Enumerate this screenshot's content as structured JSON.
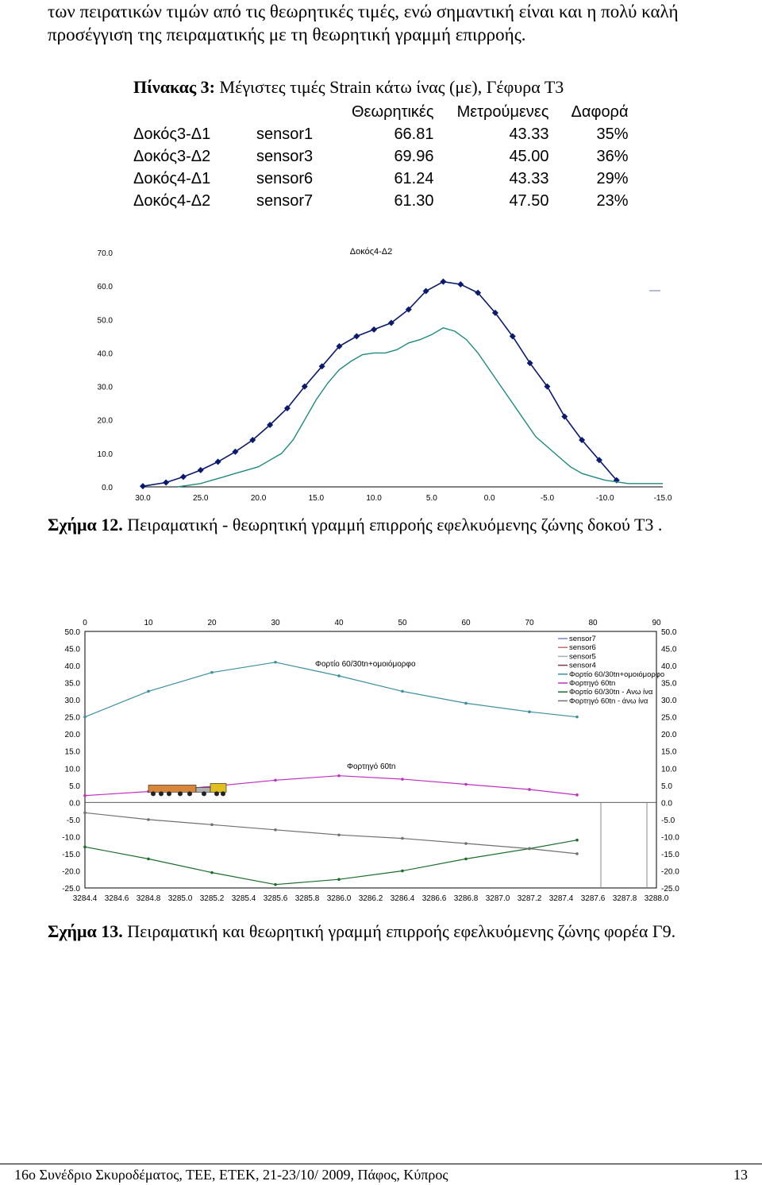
{
  "intro_text": "των πειρατικών τιμών από τις θεωρητικές τιμές, ενώ σημαντική είναι και η πολύ καλή προσέγγιση της πειραματικής με τη θεωρητική γραμμή επιρροής.",
  "table": {
    "caption_label": "Πίνακας 3:",
    "caption_text": "Μέγιστες τιμές Strain κάτω ίνας (με), Γέφυρα Τ3",
    "headers": [
      "Θεωρητικές",
      "Μετρούμενες",
      "Δαφορά"
    ],
    "rows": [
      {
        "beam": "Δοκός3-Δ1",
        "sensor": "sensor1",
        "theoretical": "66.81",
        "measured": "43.33",
        "diff": "35%"
      },
      {
        "beam": "Δοκός3-Δ2",
        "sensor": "sensor3",
        "theoretical": "69.96",
        "measured": "45.00",
        "diff": "36%"
      },
      {
        "beam": "Δοκός4-Δ1",
        "sensor": "sensor6",
        "theoretical": "61.24",
        "measured": "43.33",
        "diff": "29%"
      },
      {
        "beam": "Δοκός4-Δ2",
        "sensor": "sensor7",
        "theoretical": "61.30",
        "measured": "47.50",
        "diff": "23%"
      }
    ]
  },
  "figure12": {
    "caption_label": "Σχήμα 12.",
    "caption_text": "Πειραματική - θεωρητική γραμμή επιρροής εφελκυόμενης ζώνης δοκού Τ3 ."
  },
  "figure13": {
    "caption_label": "Σχήμα 13.",
    "caption_text": "Πειραματική και θεωρητική γραμμή επιρροής εφελκυόμενης ζώνης φορέα Γ9."
  },
  "footer": {
    "left": "16ο Συνέδριο Σκυροδέματος, ΤΕΕ, ΕΤΕΚ, 21-23/10/ 2009, Πάφος, Κύπρος",
    "page": "13"
  },
  "chart_data": [
    {
      "type": "line",
      "title": "Δοκός4-Δ2",
      "xlabel": "",
      "ylabel": "",
      "x_reversed": true,
      "xlim": [
        30,
        -15
      ],
      "ylim": [
        0,
        70
      ],
      "x_ticks": [
        "30.0",
        "25.0",
        "20.0",
        "15.0",
        "10.0",
        "5.0",
        "0.0",
        "-5.0",
        "-10.0",
        "-15.0"
      ],
      "y_ticks": [
        "70.0",
        "60.0",
        "50.0",
        "40.0",
        "30.0",
        "20.0",
        "10.0",
        "0.0"
      ],
      "series": [
        {
          "color": "#0a1a6e",
          "marker": "diamond",
          "x": [
            30,
            28,
            26.5,
            25,
            23.5,
            22,
            20.5,
            19,
            17.5,
            16,
            14.5,
            13,
            11.5,
            10,
            8.5,
            7,
            5.5,
            4,
            2.5,
            1,
            -0.5,
            -2,
            -3.5,
            -5,
            -6.5,
            -8,
            -9.5,
            -11
          ],
          "y": [
            0.2,
            1.3,
            3,
            5,
            7.5,
            10.5,
            14,
            18.5,
            23.5,
            30,
            36,
            42,
            45,
            47,
            49,
            53,
            58.5,
            61.3,
            60.5,
            58,
            52,
            45,
            37,
            30,
            21,
            14,
            8,
            2
          ]
        },
        {
          "color": "#1e8a80",
          "marker": "none",
          "x": [
            27,
            26,
            25,
            24,
            23,
            22,
            21,
            20,
            19,
            18,
            17,
            16,
            15,
            14,
            13,
            12,
            11,
            10,
            9,
            8,
            7,
            6,
            5,
            4,
            3,
            2,
            1,
            0,
            -1,
            -2,
            -3,
            -4,
            -5,
            -6,
            -7,
            -8,
            -9,
            -10,
            -11,
            -12,
            -13,
            -14,
            -15
          ],
          "y": [
            0,
            0.5,
            1,
            2,
            3,
            4,
            5,
            6,
            8,
            10,
            14,
            20,
            26,
            31,
            35,
            37.5,
            39.5,
            40,
            40,
            41,
            43,
            44,
            45.5,
            47.5,
            46.5,
            44,
            40,
            35,
            30,
            25,
            20,
            15,
            12,
            9,
            6,
            4,
            3,
            2,
            1.5,
            1,
            1,
            1,
            1
          ]
        }
      ]
    },
    {
      "type": "line",
      "title": "",
      "xlabel": "",
      "ylabel": "",
      "top_x_ticks": [
        "0",
        "10",
        "20",
        "30",
        "40",
        "50",
        "60",
        "70",
        "80",
        "90"
      ],
      "bottom_x_ticks": [
        "3284.4",
        "3284.6",
        "3284.8",
        "3285.0",
        "3285.2",
        "3285.4",
        "3285.6",
        "3285.8",
        "3286.0",
        "3286.2",
        "3286.4",
        "3286.6",
        "3286.8",
        "3287.0",
        "3287.2",
        "3287.4",
        "3287.6",
        "3287.8",
        "3288.0"
      ],
      "xlim": [
        3284.4,
        3288.0
      ],
      "ylim": [
        -25,
        50
      ],
      "y_ticks": [
        "50.0",
        "45.0",
        "40.0",
        "35.0",
        "30.0",
        "25.0",
        "20.0",
        "15.0",
        "10.0",
        "5.0",
        "0.0",
        "-5.0",
        "-10.0",
        "-15.0",
        "-20.0",
        "-25.0"
      ],
      "annotations": [
        "Φορτίο 60/30tn+ομοιόμορφο",
        "Φορτηγό 60tn"
      ],
      "legend_position": "top-right",
      "legend": [
        {
          "name": "sensor7",
          "color": "#7a86b8"
        },
        {
          "name": "sensor6",
          "color": "#c07070"
        },
        {
          "name": "sensor5",
          "color": "#9fb0b8"
        },
        {
          "name": "sensor4",
          "color": "#7a3a4a"
        },
        {
          "name": "Φορτίο 60/30tn+ομοιόμορφο",
          "color": "#3a8fa0"
        },
        {
          "name": "Φορτηγό 60tn",
          "color": "#c030c0"
        },
        {
          "name": "Φορτίο 60/30tn - Ανω ίνα",
          "color": "#1a6e2a"
        },
        {
          "name": "Φορτηγό 60tn - άνω ίνα",
          "color": "#707070"
        }
      ],
      "series": [
        {
          "name": "Φορτίο 60/30tn+ομοιόμορφο",
          "color": "#3a8fa0",
          "x": [
            3284.4,
            3284.8,
            3285.2,
            3285.6,
            3286.0,
            3286.4,
            3286.8,
            3287.2,
            3287.5
          ],
          "y": [
            25,
            32.5,
            38,
            41,
            37,
            32.5,
            29,
            26.5,
            25
          ]
        },
        {
          "name": "Φορτηγό 60tn",
          "color": "#c030c0",
          "x": [
            3284.4,
            3284.8,
            3285.2,
            3285.6,
            3286.0,
            3286.4,
            3286.8,
            3287.2,
            3287.5
          ],
          "y": [
            2,
            3.2,
            4.7,
            6.5,
            7.8,
            6.8,
            5.3,
            3.8,
            2.2
          ]
        },
        {
          "name": "Φορτίο 60/30tn - Ανω ίνα",
          "color": "#1a6e2a",
          "x": [
            3284.4,
            3284.8,
            3285.2,
            3285.6,
            3286.0,
            3286.4,
            3286.8,
            3287.2,
            3287.5
          ],
          "y": [
            -13,
            -16.5,
            -20.5,
            -24,
            -22.5,
            -20,
            -16.5,
            -13.5,
            -11
          ]
        },
        {
          "name": "Φορτηγό 60tn - άνω ίνα",
          "color": "#707070",
          "x": [
            3284.4,
            3284.8,
            3285.2,
            3285.6,
            3286.0,
            3286.4,
            3286.8,
            3287.2,
            3287.5
          ],
          "y": [
            -3,
            -5,
            -6.5,
            -8,
            -9.5,
            -10.5,
            -12,
            -13.5,
            -15
          ]
        }
      ]
    }
  ]
}
